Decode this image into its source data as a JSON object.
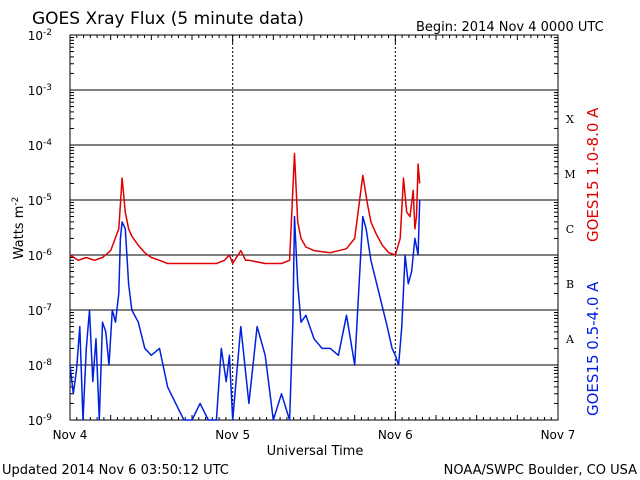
{
  "header": {
    "title": "GOES Xray Flux (5 minute data)",
    "begin": "Begin:  2014 Nov 4 0000 UTC"
  },
  "footer": {
    "updated": "Updated 2014 Nov  6 03:50:12 UTC",
    "credit": "NOAA/SWPC Boulder, CO USA"
  },
  "colors": {
    "long_channel": "#e00000",
    "short_channel": "#0020e0",
    "grid": "#000000"
  },
  "chart_data": {
    "type": "line",
    "title": "GOES Xray Flux (5 minute data)",
    "xlabel": "Universal Time",
    "ylabel": "Watts m",
    "ylabel_sup": "-2",
    "y_scale": "log",
    "ylim": [
      1e-09,
      0.01
    ],
    "y_ticks": [
      {
        "base": "10",
        "exp": "-2",
        "value": 0.01
      },
      {
        "base": "10",
        "exp": "-3",
        "value": 0.001
      },
      {
        "base": "10",
        "exp": "-4",
        "value": 0.0001
      },
      {
        "base": "10",
        "exp": "-5",
        "value": 1e-05
      },
      {
        "base": "10",
        "exp": "-6",
        "value": 1e-06
      },
      {
        "base": "10",
        "exp": "-7",
        "value": 1e-07
      },
      {
        "base": "10",
        "exp": "-8",
        "value": 1e-08
      },
      {
        "base": "10",
        "exp": "-9",
        "value": 1e-09
      }
    ],
    "x_unit": "days since Nov 4 0000 UTC",
    "xlim": [
      0,
      3
    ],
    "x_ticks": [
      {
        "label": "Nov 4",
        "value": 0
      },
      {
        "label": "Nov 5",
        "value": 1
      },
      {
        "label": "Nov 6",
        "value": 2
      },
      {
        "label": "Nov 7",
        "value": 3
      }
    ],
    "flare_classes": [
      {
        "label": "A",
        "value": 3e-08
      },
      {
        "label": "B",
        "value": 3e-07
      },
      {
        "label": "C",
        "value": 3e-06
      },
      {
        "label": "M",
        "value": 3e-05
      },
      {
        "label": "X",
        "value": 0.0003
      }
    ],
    "series": [
      {
        "name": "GOES15 1.0-8.0 A",
        "x": [
          0.0,
          0.05,
          0.1,
          0.15,
          0.2,
          0.25,
          0.3,
          0.32,
          0.34,
          0.36,
          0.38,
          0.42,
          0.46,
          0.5,
          0.55,
          0.6,
          0.7,
          0.8,
          0.9,
          0.95,
          0.98,
          1.0,
          1.05,
          1.08,
          1.1,
          1.2,
          1.3,
          1.35,
          1.38,
          1.4,
          1.42,
          1.45,
          1.5,
          1.6,
          1.7,
          1.75,
          1.8,
          1.83,
          1.85,
          1.88,
          1.92,
          1.96,
          2.0,
          2.03,
          2.05,
          2.07,
          2.09,
          2.11,
          2.12,
          2.13,
          2.14,
          2.15
        ],
        "values": [
          1e-06,
          8e-07,
          9e-07,
          8e-07,
          9e-07,
          1.2e-06,
          3e-06,
          2.5e-05,
          6e-06,
          3e-06,
          2.2e-06,
          1.5e-06,
          1.1e-06,
          9e-07,
          8e-07,
          7e-07,
          7e-07,
          7e-07,
          7e-07,
          8e-07,
          1e-06,
          7e-07,
          1.2e-06,
          8e-07,
          8e-07,
          7e-07,
          7e-07,
          8e-07,
          7e-05,
          4e-06,
          2e-06,
          1.4e-06,
          1.2e-06,
          1.1e-06,
          1.3e-06,
          2e-06,
          2.8e-05,
          8e-06,
          4e-06,
          2.5e-06,
          1.5e-06,
          1.1e-06,
          1e-06,
          2e-06,
          2.5e-05,
          6e-06,
          5e-06,
          1.5e-05,
          3e-06,
          5e-06,
          4.5e-05,
          2e-05
        ]
      },
      {
        "name": "GOES15 0.5-4.0 A",
        "x": [
          0.0,
          0.02,
          0.04,
          0.06,
          0.08,
          0.1,
          0.12,
          0.14,
          0.16,
          0.18,
          0.2,
          0.22,
          0.24,
          0.26,
          0.28,
          0.3,
          0.31,
          0.32,
          0.34,
          0.36,
          0.38,
          0.42,
          0.46,
          0.5,
          0.55,
          0.6,
          0.65,
          0.7,
          0.75,
          0.8,
          0.85,
          0.9,
          0.93,
          0.96,
          0.98,
          1.0,
          1.05,
          1.1,
          1.15,
          1.2,
          1.25,
          1.3,
          1.35,
          1.37,
          1.38,
          1.4,
          1.42,
          1.45,
          1.5,
          1.55,
          1.6,
          1.65,
          1.7,
          1.75,
          1.8,
          1.82,
          1.85,
          1.9,
          1.95,
          1.98,
          2.0,
          2.02,
          2.04,
          2.06,
          2.08,
          2.1,
          2.12,
          2.14,
          2.15
        ],
        "values": [
          1e-08,
          3e-09,
          8e-09,
          5e-08,
          1e-09,
          2e-08,
          1e-07,
          5e-09,
          3e-08,
          1e-09,
          6e-08,
          4e-08,
          1e-08,
          1e-07,
          6e-08,
          2e-07,
          2e-06,
          4e-06,
          3e-06,
          3e-07,
          1e-07,
          6e-08,
          2e-08,
          1.5e-08,
          2e-08,
          4e-09,
          2e-09,
          1e-09,
          1e-09,
          2e-09,
          1e-09,
          1e-09,
          2e-08,
          5e-09,
          1.5e-08,
          1e-09,
          5e-08,
          2e-09,
          5e-08,
          1.5e-08,
          1e-09,
          3e-09,
          1e-09,
          6e-08,
          5e-06,
          3e-07,
          6e-08,
          8e-08,
          3e-08,
          2e-08,
          2e-08,
          1.5e-08,
          8e-08,
          1e-08,
          5e-06,
          3e-06,
          8e-07,
          2e-07,
          5e-08,
          2e-08,
          1.5e-08,
          1e-08,
          5e-08,
          1e-06,
          3e-07,
          5e-07,
          2e-06,
          1e-06,
          1e-05
        ]
      }
    ]
  }
}
